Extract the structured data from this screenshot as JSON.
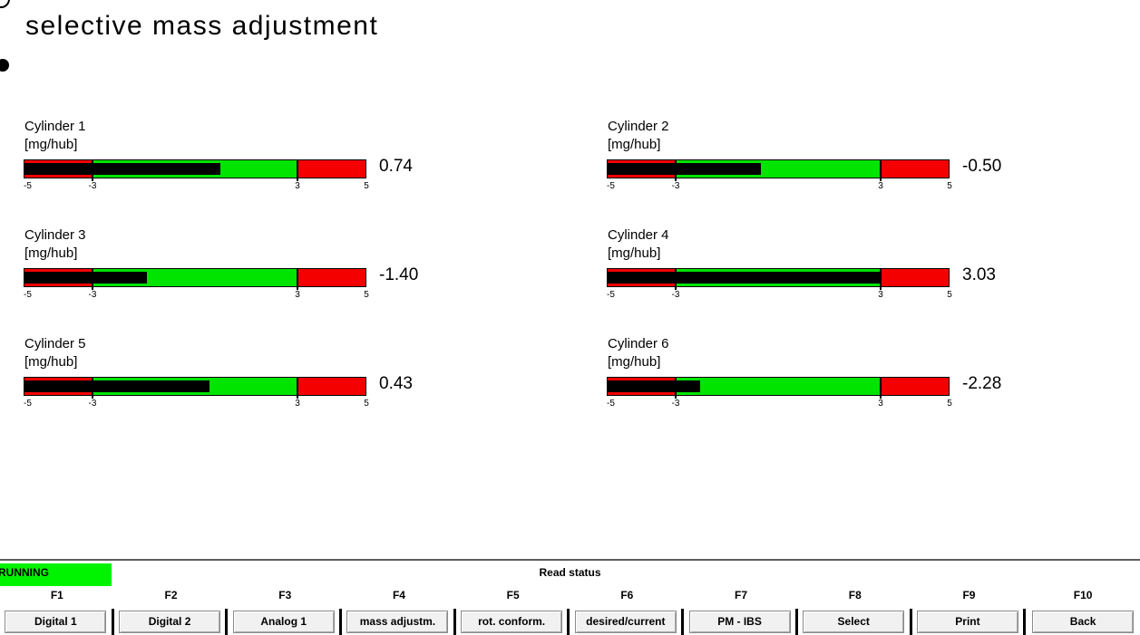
{
  "title": "selective mass adjustment",
  "colors": {
    "gauge_red": "#f40000",
    "gauge_green": "#00e400",
    "bar_fill": "#000000",
    "running_bg": "#00f400"
  },
  "gauges": {
    "unit": "[mg/hub]",
    "scale": {
      "min": -5,
      "max": 5,
      "green_from": -3,
      "green_to": 3,
      "ticks": [
        "-5",
        "-3",
        "3",
        "5"
      ]
    },
    "cylinders": [
      {
        "label": "Cylinder 1",
        "value": 0.74,
        "display": "0.74"
      },
      {
        "label": "Cylinder 2",
        "value": -0.5,
        "display": "-0.50"
      },
      {
        "label": "Cylinder 3",
        "value": -1.4,
        "display": "-1.40"
      },
      {
        "label": "Cylinder 4",
        "value": 3.03,
        "display": "3.03"
      },
      {
        "label": "Cylinder 5",
        "value": 0.43,
        "display": "0.43"
      },
      {
        "label": "Cylinder 6",
        "value": -2.28,
        "display": "-2.28"
      }
    ]
  },
  "status_bar": {
    "running": "RUNNING",
    "caption": "Read status"
  },
  "function_keys": [
    {
      "key": "F1",
      "label": "Digital 1"
    },
    {
      "key": "F2",
      "label": "Digital 2"
    },
    {
      "key": "F3",
      "label": "Analog 1"
    },
    {
      "key": "F4",
      "label": "mass adjustm."
    },
    {
      "key": "F5",
      "label": "rot. conform."
    },
    {
      "key": "F6",
      "label": "desired/current"
    },
    {
      "key": "F7",
      "label": "PM - IBS"
    },
    {
      "key": "F8",
      "label": "Select"
    },
    {
      "key": "F9",
      "label": "Print"
    },
    {
      "key": "F10",
      "label": "Back"
    }
  ]
}
